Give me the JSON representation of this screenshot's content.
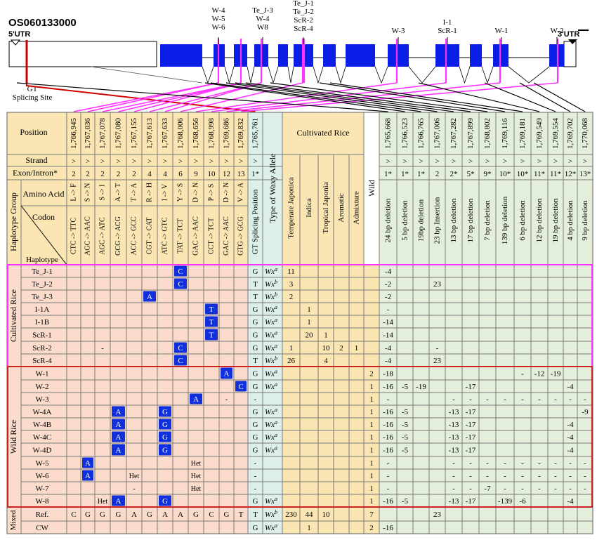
{
  "gene_id": "OS060133000",
  "utr5": "5'UTR",
  "utr3": "3'UTR",
  "gt_label_1": "GT",
  "gt_label_2": "Splicing Site",
  "exon_callouts": [
    {
      "lines": [
        "W-4",
        "W-5",
        "W-6"
      ]
    },
    {
      "lines": [
        "Te_J-3",
        "W-4",
        "W8"
      ]
    },
    {
      "lines": [
        "Te_J-1",
        "Te_J-2",
        "ScR-2",
        "ScR-4"
      ]
    },
    {
      "lines": [
        "W-3"
      ]
    },
    {
      "lines": [
        "I-1",
        "ScR-1"
      ]
    },
    {
      "lines": [
        "W-1"
      ]
    },
    {
      "lines": [
        "W-2"
      ]
    }
  ],
  "header": {
    "position": "Position",
    "strand": "Strand",
    "exon_intron": "Exon/Intron*",
    "haplotype_group": "Haplotype Group",
    "amino_acid": "Amino Acid",
    "codon": "Codon",
    "haplotype": "Haplotype",
    "gt_splicing_position": "GT Splicing Position",
    "waxy_type": "Type of Waxy Allele",
    "cultivated_rice": "Cultivated Rice",
    "wild": "Wild"
  },
  "snp_positions": [
    "1,766,945",
    "1,767,036",
    "1,767,078",
    "1,767,080",
    "1,767,155",
    "1,767,613",
    "1,767,633",
    "1,768,006",
    "1,768,656",
    "1,768,998",
    "1,769,686",
    "1,769,832"
  ],
  "snp_exons": [
    "2",
    "2",
    "2",
    "2",
    "2",
    "4",
    "4",
    "6",
    "9",
    "10",
    "12",
    "13"
  ],
  "snp_amino_acids": [
    "L -> F",
    "S -> N",
    "S -> I",
    "A -> T",
    "T -> A",
    "R -> H",
    "I -> V",
    "Y -> S",
    "D -> N",
    "P -> S",
    "D -> N",
    "V -> A"
  ],
  "snp_codons": [
    "CTC -> TTC",
    "AGC -> AAC",
    "AGC -> ATC",
    "GCG -> ACG",
    "ACC -> GCC",
    "CGT -> CAT",
    "ATC -> GTC",
    "TAT -> TCT",
    "GAC -> AAC",
    "CCT -> TCT",
    "GAC -> AAC",
    "GTG -> GCG"
  ],
  "gt_position": "1,765,761",
  "gt_exon": "1*",
  "strand_symbol": ">",
  "subpops": [
    "Temperate Japonica",
    "Indica",
    "Tropical Japonia",
    "Aromatic",
    "Admixture"
  ],
  "indel_positions": [
    "1,765,668",
    "1,766,523",
    "1,766,765",
    "1,767,006",
    "1,767,282",
    "1,767,899",
    "1,768,802",
    "1,769,116",
    "1,769,181",
    "1,769,549",
    "1,769,554",
    "1,769,702",
    "1,770,068"
  ],
  "indel_exons": [
    "1*",
    "1*",
    "1*",
    "2",
    "2*",
    "5*",
    "9*",
    "10*",
    "10*",
    "11*",
    "11*",
    "12*",
    "13*"
  ],
  "indel_types": [
    "24 bp deletion",
    "5 bp deletion",
    "19bp deletion",
    "23 bp Insertion",
    "13 bp deletion",
    "17 bp deletion",
    "7 bp deletion",
    "139 bp deletion",
    "6 bp deletion",
    "12 bp deletion",
    "19 bp deletion",
    "4 bp deletion",
    "9 bp deletion"
  ],
  "group_cultivated": "Cultivated Rice",
  "group_wild": "Wild Rice",
  "group_mixed": "Mixed",
  "rows": [
    {
      "name": "Te_J-1",
      "snps": [
        "",
        "",
        "",
        "",
        "",
        "",
        "",
        "C",
        "",
        "",
        "",
        ""
      ],
      "gt": "G",
      "wx": "Wx",
      "sup": "a",
      "cult": [
        "11",
        "",
        "",
        "",
        ""
      ],
      "wild": "",
      "indels": [
        "-4",
        "",
        "",
        "",
        "",
        "",
        "",
        "",
        "",
        "",
        "",
        "",
        ""
      ]
    },
    {
      "name": "Te_J-2",
      "snps": [
        "",
        "",
        "",
        "",
        "",
        "",
        "",
        "C",
        "",
        "",
        "",
        ""
      ],
      "gt": "T",
      "wx": "Wx",
      "sup": "b",
      "cult": [
        "3",
        "",
        "",
        "",
        ""
      ],
      "wild": "",
      "indels": [
        "-2",
        "",
        "",
        "23",
        "",
        "",
        "",
        "",
        "",
        "",
        "",
        "",
        ""
      ]
    },
    {
      "name": "Te_J-3",
      "snps": [
        "",
        "",
        "",
        "",
        "",
        "A",
        "",
        "",
        "",
        "",
        "",
        ""
      ],
      "gt": "T",
      "wx": "Wx",
      "sup": "b",
      "cult": [
        "2",
        "",
        "",
        "",
        ""
      ],
      "wild": "",
      "indels": [
        "-2",
        "",
        "",
        "",
        "",
        "",
        "",
        "",
        "",
        "",
        "",
        "",
        ""
      ]
    },
    {
      "name": "I-1A",
      "snps": [
        "",
        "",
        "",
        "",
        "",
        "",
        "",
        "",
        "",
        "T",
        "",
        ""
      ],
      "gt": "G",
      "wx": "Wx",
      "sup": "a",
      "cult": [
        "",
        "1",
        "",
        "",
        ""
      ],
      "wild": "",
      "indels": [
        "-",
        "",
        "",
        "",
        "",
        "",
        "",
        "",
        "",
        "",
        "",
        "",
        ""
      ]
    },
    {
      "name": "I-1B",
      "snps": [
        "",
        "",
        "",
        "",
        "",
        "",
        "",
        "",
        "",
        "T",
        "",
        ""
      ],
      "gt": "G",
      "wx": "Wx",
      "sup": "a",
      "cult": [
        "",
        "1",
        "",
        "",
        ""
      ],
      "wild": "",
      "indels": [
        "-14",
        "",
        "",
        "",
        "",
        "",
        "",
        "",
        "",
        "",
        "",
        "",
        ""
      ]
    },
    {
      "name": "ScR-1",
      "snps": [
        "",
        "",
        "",
        "",
        "",
        "",
        "",
        "",
        "",
        "T",
        "",
        ""
      ],
      "gt": "G",
      "wx": "Wx",
      "sup": "a",
      "cult": [
        "",
        "20",
        "1",
        "",
        ""
      ],
      "wild": "",
      "indels": [
        "-14",
        "",
        "",
        "",
        "",
        "",
        "",
        "",
        "",
        "",
        "",
        "",
        ""
      ]
    },
    {
      "name": "ScR-2",
      "snps": [
        "",
        "",
        "-",
        "",
        "",
        "",
        "",
        "C",
        "",
        "",
        "",
        ""
      ],
      "gt": "G",
      "wx": "Wx",
      "sup": "a",
      "cult": [
        "1",
        "",
        "10",
        "2",
        "1"
      ],
      "wild": "",
      "indels": [
        "-4",
        "",
        "",
        "-",
        "",
        "",
        "",
        "",
        "",
        "",
        "",
        "",
        ""
      ]
    },
    {
      "name": "ScR-4",
      "snps": [
        "",
        "",
        "",
        "",
        "",
        "",
        "",
        "C",
        "",
        "",
        "",
        ""
      ],
      "gt": "T",
      "wx": "Wx",
      "sup": "b",
      "cult": [
        "26",
        "",
        "4",
        "",
        ""
      ],
      "wild": "",
      "indels": [
        "-4",
        "",
        "",
        "23",
        "",
        "",
        "",
        "",
        "",
        "",
        "",
        "",
        ""
      ]
    },
    {
      "name": "W-1",
      "snps": [
        "",
        "",
        "",
        "",
        "",
        "",
        "",
        "",
        "",
        "",
        "A",
        ""
      ],
      "gt": "G",
      "wx": "Wx",
      "sup": "a",
      "cult": [
        "",
        "",
        "",
        "",
        ""
      ],
      "wild": "2",
      "indels": [
        "-18",
        "",
        "",
        "",
        "",
        "",
        "",
        "",
        "-",
        "-12",
        "-19",
        "",
        ""
      ]
    },
    {
      "name": "W-2",
      "snps": [
        "",
        "",
        "",
        "",
        "",
        "",
        "",
        "",
        "",
        "",
        "",
        "C"
      ],
      "gt": "G",
      "wx": "Wx",
      "sup": "a",
      "cult": [
        "",
        "",
        "",
        "",
        ""
      ],
      "wild": "1",
      "indels": [
        "-16",
        "-5",
        "-19",
        "",
        "",
        "-17",
        "",
        "",
        "",
        "",
        "",
        "-4",
        ""
      ]
    },
    {
      "name": "W-3",
      "snps": [
        "",
        "",
        "",
        "",
        "",
        "",
        "",
        "",
        "A",
        "",
        "-",
        ""
      ],
      "gt": "-",
      "wx": "",
      "sup": "",
      "cult": [
        "",
        "",
        "",
        "",
        ""
      ],
      "wild": "1",
      "indels": [
        "-",
        "",
        "",
        "",
        "-",
        "-",
        "-",
        "-",
        "-",
        "-",
        "-",
        "-",
        "-"
      ]
    },
    {
      "name": "W-4A",
      "snps": [
        "",
        "",
        "",
        "A",
        "",
        "",
        "G",
        "",
        "",
        "",
        "",
        ""
      ],
      "gt": "G",
      "wx": "Wx",
      "sup": "a",
      "cult": [
        "",
        "",
        "",
        "",
        ""
      ],
      "wild": "1",
      "indels": [
        "-16",
        "-5",
        "",
        "",
        "-13",
        "-17",
        "",
        "",
        "",
        "",
        "",
        "",
        "-9"
      ]
    },
    {
      "name": "W-4B",
      "snps": [
        "",
        "",
        "",
        "A",
        "",
        "",
        "G",
        "",
        "",
        "",
        "",
        ""
      ],
      "gt": "G",
      "wx": "Wx",
      "sup": "a",
      "cult": [
        "",
        "",
        "",
        "",
        ""
      ],
      "wild": "1",
      "indels": [
        "-16",
        "-5",
        "",
        "",
        "-13",
        "-17",
        "",
        "",
        "",
        "",
        "",
        "-4",
        ""
      ]
    },
    {
      "name": "W-4C",
      "snps": [
        "",
        "",
        "",
        "A",
        "",
        "",
        "G",
        "",
        "",
        "",
        "",
        ""
      ],
      "gt": "G",
      "wx": "Wx",
      "sup": "a",
      "cult": [
        "",
        "",
        "",
        "",
        ""
      ],
      "wild": "1",
      "indels": [
        "-16",
        "-5",
        "",
        "",
        "-13",
        "-17",
        "",
        "",
        "",
        "",
        "",
        "-4",
        ""
      ]
    },
    {
      "name": "W-4D",
      "snps": [
        "",
        "",
        "",
        "A",
        "",
        "",
        "G",
        "",
        "",
        "",
        "",
        ""
      ],
      "gt": "G",
      "wx": "Wx",
      "sup": "a",
      "cult": [
        "",
        "",
        "",
        "",
        ""
      ],
      "wild": "1",
      "indels": [
        "-16",
        "-5",
        "",
        "",
        "-13",
        "-17",
        "",
        "",
        "",
        "",
        "",
        "-4",
        ""
      ]
    },
    {
      "name": "W-5",
      "snps": [
        "",
        "A",
        "",
        "",
        "",
        "",
        "",
        "",
        "Het",
        "",
        "",
        ""
      ],
      "gt": "-",
      "wx": "",
      "sup": "",
      "cult": [
        "",
        "",
        "",
        "",
        ""
      ],
      "wild": "1",
      "indels": [
        "-",
        "",
        "",
        "",
        "-",
        "-",
        "-",
        "-",
        "-",
        "-",
        "-",
        "-",
        "-"
      ]
    },
    {
      "name": "W-6",
      "snps": [
        "",
        "A",
        "",
        "",
        "Het",
        "",
        "",
        "",
        "Het",
        "",
        "",
        ""
      ],
      "gt": "-",
      "wx": "",
      "sup": "",
      "cult": [
        "",
        "",
        "",
        "",
        ""
      ],
      "wild": "1",
      "indels": [
        "-",
        "",
        "",
        "",
        "-",
        "-",
        "-",
        "-",
        "-",
        "-",
        "-",
        "-",
        "-"
      ]
    },
    {
      "name": "W-7",
      "snps": [
        "",
        "",
        "",
        "",
        "-",
        "",
        "",
        "",
        "Het",
        "",
        "",
        ""
      ],
      "gt": "-",
      "wx": "",
      "sup": "",
      "cult": [
        "",
        "",
        "",
        "",
        ""
      ],
      "wild": "1",
      "indels": [
        "-",
        "",
        "",
        "",
        "-",
        "-",
        "-7",
        "-",
        "-",
        "-",
        "-",
        "-",
        "-"
      ]
    },
    {
      "name": "W-8",
      "snps": [
        "",
        "",
        "Het",
        "A",
        "",
        "",
        "G",
        "",
        "",
        "",
        "",
        ""
      ],
      "gt": "G",
      "wx": "Wx",
      "sup": "a",
      "cult": [
        "",
        "",
        "",
        "",
        ""
      ],
      "wild": "1",
      "indels": [
        "-16",
        "-5",
        "",
        "",
        "-13",
        "-17",
        "",
        "-139",
        "-6",
        "",
        "",
        "-4",
        ""
      ]
    },
    {
      "name": "Ref.",
      "snps": [
        "C",
        "G",
        "G",
        "G",
        "A",
        "G",
        "A",
        "A",
        "G",
        "C",
        "G",
        "T"
      ],
      "gt": "T",
      "wx": "Wx",
      "sup": "b",
      "cult": [
        "230",
        "44",
        "10",
        "",
        ""
      ],
      "wild": "7",
      "indels": [
        "",
        "",
        "",
        "23",
        "",
        "",
        "",
        "",
        "",
        "",
        "",
        "",
        ""
      ]
    },
    {
      "name": "CW",
      "snps": [
        "",
        "",
        "",
        "",
        "",
        "",
        "",
        "",
        "",
        "",
        "",
        ""
      ],
      "gt": "G",
      "wx": "Wx",
      "sup": "a",
      "cult": [
        "",
        "1",
        "",
        "",
        ""
      ],
      "wild": "2",
      "indels": [
        "-16",
        "",
        "",
        "",
        "",
        "",
        "",
        "",
        "",
        "",
        "",
        "",
        ""
      ]
    }
  ],
  "colors": {
    "header_fill": "#fbe6b3",
    "body_fill": "#fbdccc",
    "indel_fill": "#e3eedb",
    "gt_fill": "#dcefe9",
    "highlight": "#1030dd",
    "exon": "#0a1ee8",
    "magenta": "#ff33ff",
    "red": "#d00000",
    "grid": "#7a7a7a",
    "cultivated_border": "#ff33ff",
    "wild_border": "#cc2222"
  }
}
